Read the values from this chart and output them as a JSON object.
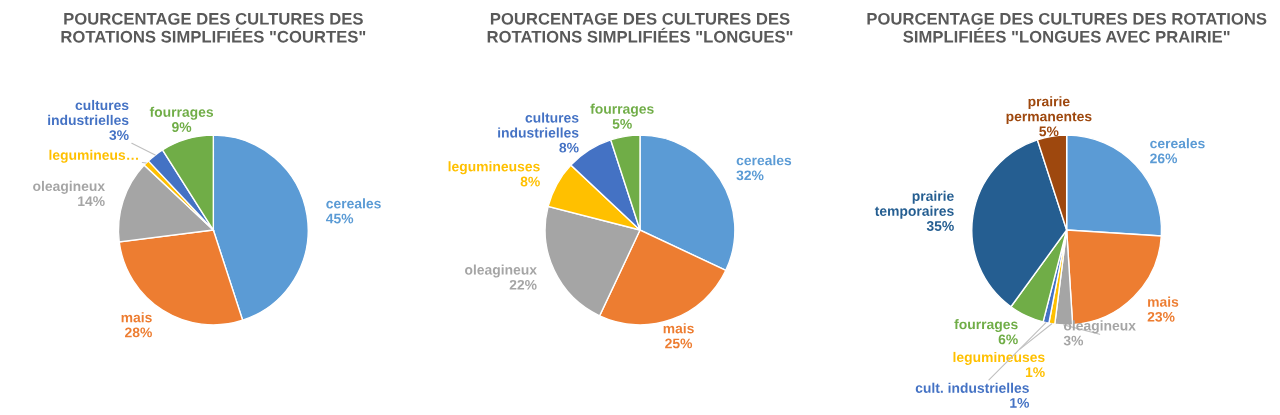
{
  "chart_data": [
    {
      "type": "pie",
      "title": "POURCENTAGE DES CULTURES DES\nROTATIONS SIMPLIFIÉES \"COURTES\"",
      "categories": [
        "cereales",
        "mais",
        "oleagineux",
        "legumineus…",
        "cultures\nindustrielles",
        "fourrages"
      ],
      "values": [
        45,
        28,
        14,
        1,
        3,
        9
      ],
      "value_labels": [
        "45%",
        "28%",
        "14%",
        null,
        "3%",
        "9%"
      ],
      "colors": [
        "#5b9bd5",
        "#ed7d31",
        "#a5a5a5",
        "#ffc000",
        "#4472c4",
        "#70ad47"
      ]
    },
    {
      "type": "pie",
      "title": "POURCENTAGE DES CULTURES DES\nROTATIONS SIMPLIFIÉES \"LONGUES\"",
      "categories": [
        "cereales",
        "mais",
        "oleagineux",
        "legumineuses",
        "cultures\nindustrielles",
        "fourrages"
      ],
      "values": [
        32,
        25,
        22,
        8,
        8,
        5
      ],
      "value_labels": [
        "32%",
        "25%",
        "22%",
        "8%",
        "8%",
        "5%"
      ],
      "colors": [
        "#5b9bd5",
        "#ed7d31",
        "#a5a5a5",
        "#ffc000",
        "#4472c4",
        "#70ad47"
      ]
    },
    {
      "type": "pie",
      "title": "POURCENTAGE DES CULTURES DES ROTATIONS\nSIMPLIFIÉES \"LONGUES AVEC PRAIRIE\"",
      "categories": [
        "cereales",
        "mais",
        "oleagineux",
        "legumineuses",
        "cult. industrielles",
        "fourrages",
        "prairie\ntemporaires",
        "prairie\npermanentes"
      ],
      "values": [
        26,
        23,
        3,
        1,
        1,
        6,
        35,
        5
      ],
      "value_labels": [
        "26%",
        "23%",
        "3%",
        "1%",
        "1%",
        "6%",
        "35%",
        "5%"
      ],
      "colors": [
        "#5b9bd5",
        "#ed7d31",
        "#a5a5a5",
        "#ffc000",
        "#4472c4",
        "#70ad47",
        "#255e91",
        "#9e480e"
      ]
    }
  ]
}
